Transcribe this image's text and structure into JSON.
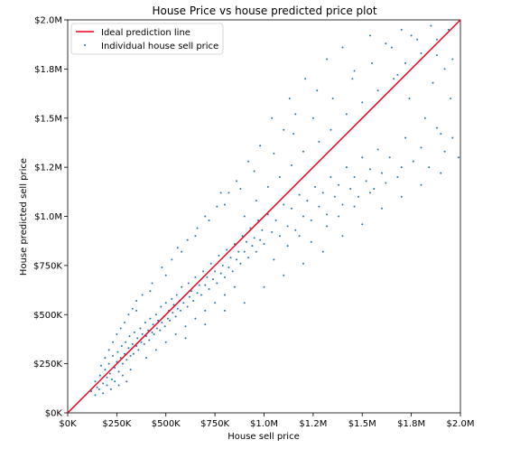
{
  "chart_data": {
    "type": "scatter",
    "title": "House Price vs house predicted price plot",
    "xlabel": "House sell price",
    "ylabel": "House predicted sell price",
    "xlim": [
      0,
      2000000
    ],
    "ylim": [
      0,
      2000000
    ],
    "x_ticks": [
      {
        "value": 0,
        "label": "$0K"
      },
      {
        "value": 250000,
        "label": "$250K"
      },
      {
        "value": 500000,
        "label": "$500K"
      },
      {
        "value": 750000,
        "label": "$750K"
      },
      {
        "value": 1000000,
        "label": "$1.0M"
      },
      {
        "value": 1250000,
        "label": "$1.2M"
      },
      {
        "value": 1500000,
        "label": "$1.5M"
      },
      {
        "value": 1750000,
        "label": "$1.8M"
      },
      {
        "value": 2000000,
        "label": "$2.0M"
      }
    ],
    "y_ticks": [
      {
        "value": 0,
        "label": "$0K"
      },
      {
        "value": 250000,
        "label": "$250K"
      },
      {
        "value": 500000,
        "label": "$500K"
      },
      {
        "value": 750000,
        "label": "$750K"
      },
      {
        "value": 1000000,
        "label": "$1.0M"
      },
      {
        "value": 1250000,
        "label": "$1.2M"
      },
      {
        "value": 1500000,
        "label": "$1.5M"
      },
      {
        "value": 1750000,
        "label": "$1.8M"
      },
      {
        "value": 2000000,
        "label": "$2.0M"
      }
    ],
    "grid": false,
    "legend_position": "top-left",
    "series": [
      {
        "name": "Ideal prediction line",
        "kind": "line",
        "color": "#e8001a",
        "x": [
          0,
          2000000
        ],
        "y": [
          0,
          2000000
        ]
      },
      {
        "name": "Individual house sell price",
        "kind": "scatter",
        "color": "#1f77b4",
        "points": [
          [
            120000,
            110000
          ],
          [
            140000,
            160000
          ],
          [
            150000,
            130000
          ],
          [
            165000,
            190000
          ],
          [
            180000,
            150000
          ],
          [
            190000,
            220000
          ],
          [
            200000,
            180000
          ],
          [
            210000,
            250000
          ],
          [
            215000,
            200000
          ],
          [
            225000,
            170000
          ],
          [
            230000,
            290000
          ],
          [
            240000,
            230000
          ],
          [
            250000,
            260000
          ],
          [
            255000,
            310000
          ],
          [
            260000,
            210000
          ],
          [
            270000,
            280000
          ],
          [
            275000,
            340000
          ],
          [
            280000,
            250000
          ],
          [
            290000,
            300000
          ],
          [
            295000,
            360000
          ],
          [
            300000,
            270000
          ],
          [
            310000,
            330000
          ],
          [
            315000,
            390000
          ],
          [
            320000,
            290000
          ],
          [
            330000,
            350000
          ],
          [
            335000,
            300000
          ],
          [
            340000,
            410000
          ],
          [
            350000,
            340000
          ],
          [
            355000,
            380000
          ],
          [
            360000,
            320000
          ],
          [
            370000,
            430000
          ],
          [
            375000,
            360000
          ],
          [
            380000,
            400000
          ],
          [
            390000,
            350000
          ],
          [
            395000,
            460000
          ],
          [
            400000,
            390000
          ],
          [
            410000,
            420000
          ],
          [
            415000,
            370000
          ],
          [
            420000,
            480000
          ],
          [
            430000,
            410000
          ],
          [
            435000,
            450000
          ],
          [
            440000,
            400000
          ],
          [
            450000,
            500000
          ],
          [
            455000,
            430000
          ],
          [
            460000,
            470000
          ],
          [
            470000,
            420000
          ],
          [
            475000,
            540000
          ],
          [
            480000,
            460000
          ],
          [
            490000,
            490000
          ],
          [
            495000,
            440000
          ],
          [
            500000,
            560000
          ],
          [
            510000,
            480000
          ],
          [
            515000,
            520000
          ],
          [
            520000,
            470000
          ],
          [
            530000,
            580000
          ],
          [
            535000,
            510000
          ],
          [
            540000,
            550000
          ],
          [
            550000,
            490000
          ],
          [
            555000,
            600000
          ],
          [
            560000,
            530000
          ],
          [
            570000,
            570000
          ],
          [
            575000,
            520000
          ],
          [
            580000,
            640000
          ],
          [
            590000,
            560000
          ],
          [
            600000,
            600000
          ],
          [
            610000,
            540000
          ],
          [
            615000,
            660000
          ],
          [
            620000,
            590000
          ],
          [
            630000,
            620000
          ],
          [
            640000,
            570000
          ],
          [
            650000,
            690000
          ],
          [
            660000,
            610000
          ],
          [
            670000,
            650000
          ],
          [
            680000,
            600000
          ],
          [
            690000,
            720000
          ],
          [
            700000,
            650000
          ],
          [
            710000,
            690000
          ],
          [
            720000,
            630000
          ],
          [
            730000,
            760000
          ],
          [
            740000,
            680000
          ],
          [
            750000,
            720000
          ],
          [
            760000,
            660000
          ],
          [
            770000,
            800000
          ],
          [
            780000,
            710000
          ],
          [
            790000,
            750000
          ],
          [
            800000,
            690000
          ],
          [
            810000,
            830000
          ],
          [
            820000,
            740000
          ],
          [
            830000,
            790000
          ],
          [
            840000,
            720000
          ],
          [
            850000,
            860000
          ],
          [
            860000,
            780000
          ],
          [
            870000,
            820000
          ],
          [
            880000,
            760000
          ],
          [
            890000,
            900000
          ],
          [
            900000,
            820000
          ],
          [
            910000,
            870000
          ],
          [
            920000,
            790000
          ],
          [
            930000,
            940000
          ],
          [
            940000,
            850000
          ],
          [
            950000,
            890000
          ],
          [
            960000,
            820000
          ],
          [
            970000,
            980000
          ],
          [
            980000,
            880000
          ],
          [
            990000,
            930000
          ],
          [
            1000000,
            860000
          ],
          [
            1020000,
            1010000
          ],
          [
            1040000,
            920000
          ],
          [
            1060000,
            980000
          ],
          [
            1080000,
            900000
          ],
          [
            1100000,
            1060000
          ],
          [
            1120000,
            950000
          ],
          [
            1140000,
            1040000
          ],
          [
            1160000,
            930000
          ],
          [
            1180000,
            1110000
          ],
          [
            1200000,
            1000000
          ],
          [
            1220000,
            1080000
          ],
          [
            1240000,
            980000
          ],
          [
            1260000,
            1150000
          ],
          [
            1280000,
            1050000
          ],
          [
            1300000,
            1120000
          ],
          [
            1320000,
            1010000
          ],
          [
            1340000,
            1200000
          ],
          [
            1360000,
            1100000
          ],
          [
            1380000,
            1160000
          ],
          [
            1400000,
            1060000
          ],
          [
            1420000,
            1250000
          ],
          [
            1440000,
            1140000
          ],
          [
            1460000,
            1200000
          ],
          [
            1480000,
            1100000
          ],
          [
            1500000,
            1300000
          ],
          [
            1520000,
            1180000
          ],
          [
            1540000,
            1240000
          ],
          [
            1560000,
            1140000
          ],
          [
            1580000,
            1340000
          ],
          [
            1600000,
            1220000
          ],
          [
            1640000,
            1300000
          ],
          [
            1680000,
            1200000
          ],
          [
            1720000,
            1400000
          ],
          [
            1760000,
            1280000
          ],
          [
            1800000,
            1350000
          ],
          [
            1840000,
            1250000
          ],
          [
            1880000,
            1450000
          ],
          [
            1920000,
            1330000
          ],
          [
            1960000,
            1400000
          ],
          [
            1990000,
            1300000
          ],
          [
            350000,
            520000
          ],
          [
            420000,
            620000
          ],
          [
            500000,
            700000
          ],
          [
            580000,
            820000
          ],
          [
            650000,
            900000
          ],
          [
            720000,
            980000
          ],
          [
            800000,
            1060000
          ],
          [
            880000,
            1140000
          ],
          [
            950000,
            1230000
          ],
          [
            1050000,
            1320000
          ],
          [
            1150000,
            1420000
          ],
          [
            1250000,
            1500000
          ],
          [
            1350000,
            1600000
          ],
          [
            1450000,
            1700000
          ],
          [
            1550000,
            1780000
          ],
          [
            1650000,
            1860000
          ],
          [
            1750000,
            1920000
          ],
          [
            1850000,
            1970000
          ],
          [
            600000,
            380000
          ],
          [
            700000,
            450000
          ],
          [
            800000,
            520000
          ],
          [
            900000,
            560000
          ],
          [
            1000000,
            640000
          ],
          [
            1100000,
            700000
          ],
          [
            1200000,
            760000
          ],
          [
            1300000,
            820000
          ],
          [
            1400000,
            900000
          ],
          [
            1500000,
            960000
          ],
          [
            1600000,
            1040000
          ],
          [
            1700000,
            1100000
          ],
          [
            1800000,
            1160000
          ],
          [
            1900000,
            1220000
          ],
          [
            1950000,
            1600000
          ],
          [
            1920000,
            1750000
          ],
          [
            1880000,
            1820000
          ],
          [
            1860000,
            1680000
          ],
          [
            1780000,
            1900000
          ],
          [
            1700000,
            1950000
          ],
          [
            1620000,
            1880000
          ],
          [
            1680000,
            1720000
          ],
          [
            1740000,
            1600000
          ],
          [
            1820000,
            1500000
          ],
          [
            1900000,
            1420000
          ],
          [
            1960000,
            1800000
          ],
          [
            140000,
            90000
          ],
          [
            160000,
            120000
          ],
          [
            180000,
            100000
          ],
          [
            200000,
            140000
          ],
          [
            220000,
            120000
          ],
          [
            240000,
            160000
          ],
          [
            260000,
            140000
          ],
          [
            280000,
            190000
          ],
          [
            300000,
            160000
          ],
          [
            320000,
            220000
          ],
          [
            170000,
            240000
          ],
          [
            190000,
            280000
          ],
          [
            210000,
            320000
          ],
          [
            230000,
            360000
          ],
          [
            250000,
            400000
          ],
          [
            270000,
            430000
          ],
          [
            290000,
            460000
          ],
          [
            310000,
            500000
          ],
          [
            330000,
            530000
          ],
          [
            350000,
            570000
          ],
          [
            400000,
            280000
          ],
          [
            450000,
            320000
          ],
          [
            500000,
            360000
          ],
          [
            550000,
            400000
          ],
          [
            600000,
            440000
          ],
          [
            650000,
            480000
          ],
          [
            700000,
            520000
          ],
          [
            750000,
            560000
          ],
          [
            800000,
            600000
          ],
          [
            850000,
            640000
          ],
          [
            380000,
            600000
          ],
          [
            430000,
            660000
          ],
          [
            480000,
            740000
          ],
          [
            530000,
            780000
          ],
          [
            560000,
            840000
          ],
          [
            610000,
            880000
          ],
          [
            660000,
            940000
          ],
          [
            700000,
            1000000
          ],
          [
            760000,
            1050000
          ],
          [
            820000,
            1120000
          ],
          [
            1050000,
            780000
          ],
          [
            1120000,
            850000
          ],
          [
            1180000,
            900000
          ],
          [
            1240000,
            870000
          ],
          [
            1320000,
            950000
          ],
          [
            1380000,
            1000000
          ],
          [
            1460000,
            1050000
          ],
          [
            1540000,
            1120000
          ],
          [
            1620000,
            1170000
          ],
          [
            1700000,
            1250000
          ],
          [
            900000,
            1000000
          ],
          [
            960000,
            1080000
          ],
          [
            1020000,
            1150000
          ],
          [
            1080000,
            1200000
          ],
          [
            1140000,
            1260000
          ],
          [
            1200000,
            1330000
          ],
          [
            1280000,
            1380000
          ],
          [
            1340000,
            1440000
          ],
          [
            1420000,
            1520000
          ],
          [
            1500000,
            1580000
          ],
          [
            1580000,
            1640000
          ],
          [
            1660000,
            1700000
          ],
          [
            1720000,
            1780000
          ],
          [
            1800000,
            1830000
          ],
          [
            1880000,
            1900000
          ],
          [
            1940000,
            1950000
          ],
          [
            1130000,
            1600000
          ],
          [
            1210000,
            1700000
          ],
          [
            1160000,
            1520000
          ],
          [
            1270000,
            1640000
          ],
          [
            1320000,
            1800000
          ],
          [
            1400000,
            1860000
          ],
          [
            1460000,
            1740000
          ],
          [
            1540000,
            1920000
          ],
          [
            1100000,
            1440000
          ],
          [
            1040000,
            1500000
          ],
          [
            980000,
            1360000
          ],
          [
            920000,
            1280000
          ],
          [
            860000,
            1180000
          ],
          [
            780000,
            1120000
          ]
        ]
      }
    ]
  }
}
